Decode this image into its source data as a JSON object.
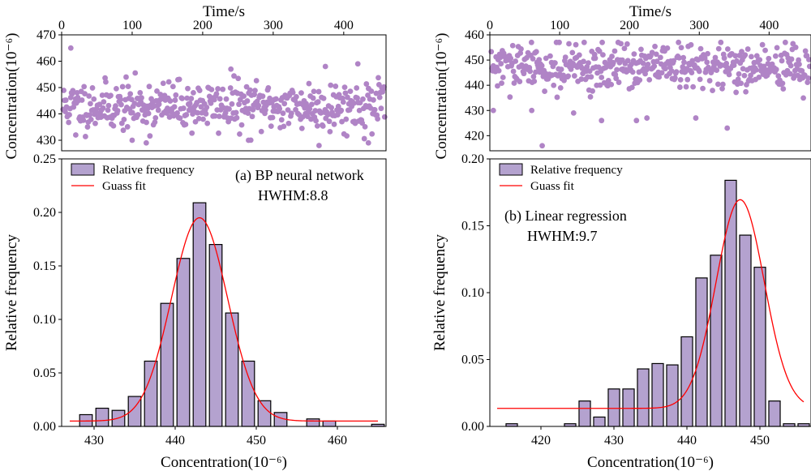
{
  "chart_data": [
    {
      "panel": "a",
      "type": "histogram+fit",
      "top_scatter": {
        "type": "scatter",
        "xlabel": "Time/s",
        "ylabel": "Concentration(10⁻⁶)",
        "xlim": [
          0,
          460
        ],
        "ylim": [
          426,
          470
        ],
        "xticks": [
          0,
          100,
          200,
          300,
          400
        ],
        "yticks": [
          430,
          440,
          450,
          460,
          470
        ],
        "point_color": "#b084c6",
        "n_points": 460,
        "center": 443,
        "spread": 4.6,
        "outliers": [
          [
            13,
            465
          ],
          [
            240,
            457
          ],
          [
            374,
            458
          ],
          [
            420,
            459
          ],
          [
            20,
            432
          ],
          [
            100,
            430
          ],
          [
            120,
            429
          ],
          [
            265,
            430
          ],
          [
            435,
            429
          ],
          [
            365,
            428
          ]
        ]
      },
      "histogram": {
        "xlabel": "Concentration(10⁻⁶)",
        "ylabel": "Relative frequency",
        "xlim": [
          426,
          466
        ],
        "ylim": [
          0,
          0.25
        ],
        "xticks": [
          430,
          440,
          450,
          460
        ],
        "yticks": [
          "0.00",
          "0.05",
          "0.10",
          "0.15",
          "0.20",
          "0.25"
        ],
        "bin_width": 2,
        "bins": [
          429,
          431,
          433,
          435,
          437,
          439,
          441,
          443,
          445,
          447,
          449,
          451,
          453,
          455,
          457,
          459,
          461,
          463,
          465
        ],
        "values": [
          0.011,
          0.017,
          0.015,
          0.028,
          0.061,
          0.115,
          0.157,
          0.209,
          0.17,
          0.106,
          0.061,
          0.024,
          0.013,
          0.0,
          0.007,
          0.005,
          0.0,
          0.0,
          0.002
        ],
        "bar_color": "#b4a2cf",
        "fit": {
          "center": 443,
          "amplitude": 0.19,
          "sigma": 3.45,
          "offset": 0.005,
          "color": "#ff0000"
        }
      },
      "legend": [
        "Relative frequency",
        "Guass fit"
      ],
      "annotation": [
        "(a) BP neural network",
        "HWHM:8.8"
      ]
    },
    {
      "panel": "b",
      "type": "histogram+fit",
      "top_scatter": {
        "type": "scatter",
        "xlabel": "Time/s",
        "ylabel": "Concentration(10⁻⁶)",
        "xlim": [
          0,
          460
        ],
        "ylim": [
          414,
          460
        ],
        "xticks": [
          0,
          100,
          200,
          300,
          400
        ],
        "yticks": [
          420,
          430,
          440,
          450,
          460
        ],
        "point_color": "#b084c6",
        "n_points": 460,
        "center": 447,
        "spread": 4.5,
        "outliers": [
          [
            75,
            416
          ],
          [
            340,
            423
          ],
          [
            5,
            430
          ],
          [
            120,
            429
          ],
          [
            60,
            430
          ],
          [
            210,
            426
          ],
          [
            160,
            426
          ],
          [
            225,
            427
          ],
          [
            295,
            427
          ]
        ]
      },
      "histogram": {
        "xlabel": "Concentration(10⁻⁶)",
        "ylabel": "Relative frequency",
        "xlim": [
          413,
          457
        ],
        "ylim": [
          0,
          0.2
        ],
        "xticks": [
          420,
          430,
          440,
          450
        ],
        "yticks": [
          "0.00",
          "0.05",
          "0.10",
          "0.15",
          "0.20"
        ],
        "bin_width": 2,
        "bins": [
          416,
          418,
          420,
          422,
          424,
          426,
          428,
          430,
          432,
          434,
          436,
          438,
          440,
          442,
          444,
          446,
          448,
          450,
          452,
          454,
          456
        ],
        "values": [
          0.002,
          0.0,
          0.0,
          0.0,
          0.002,
          0.019,
          0.007,
          0.028,
          0.028,
          0.043,
          0.047,
          0.046,
          0.067,
          0.111,
          0.128,
          0.184,
          0.143,
          0.119,
          0.019,
          0.002,
          0.002
        ],
        "bar_color": "#b4a2cf",
        "fit": {
          "center": 447.3,
          "amplitude": 0.156,
          "sigma": 3.3,
          "offset": 0.0135,
          "color": "#ff0000"
        }
      },
      "legend": [
        "Relative frequency",
        "Guass fit"
      ],
      "annotation": [
        "(b) Linear regression",
        "HWHM:9.7"
      ]
    }
  ]
}
